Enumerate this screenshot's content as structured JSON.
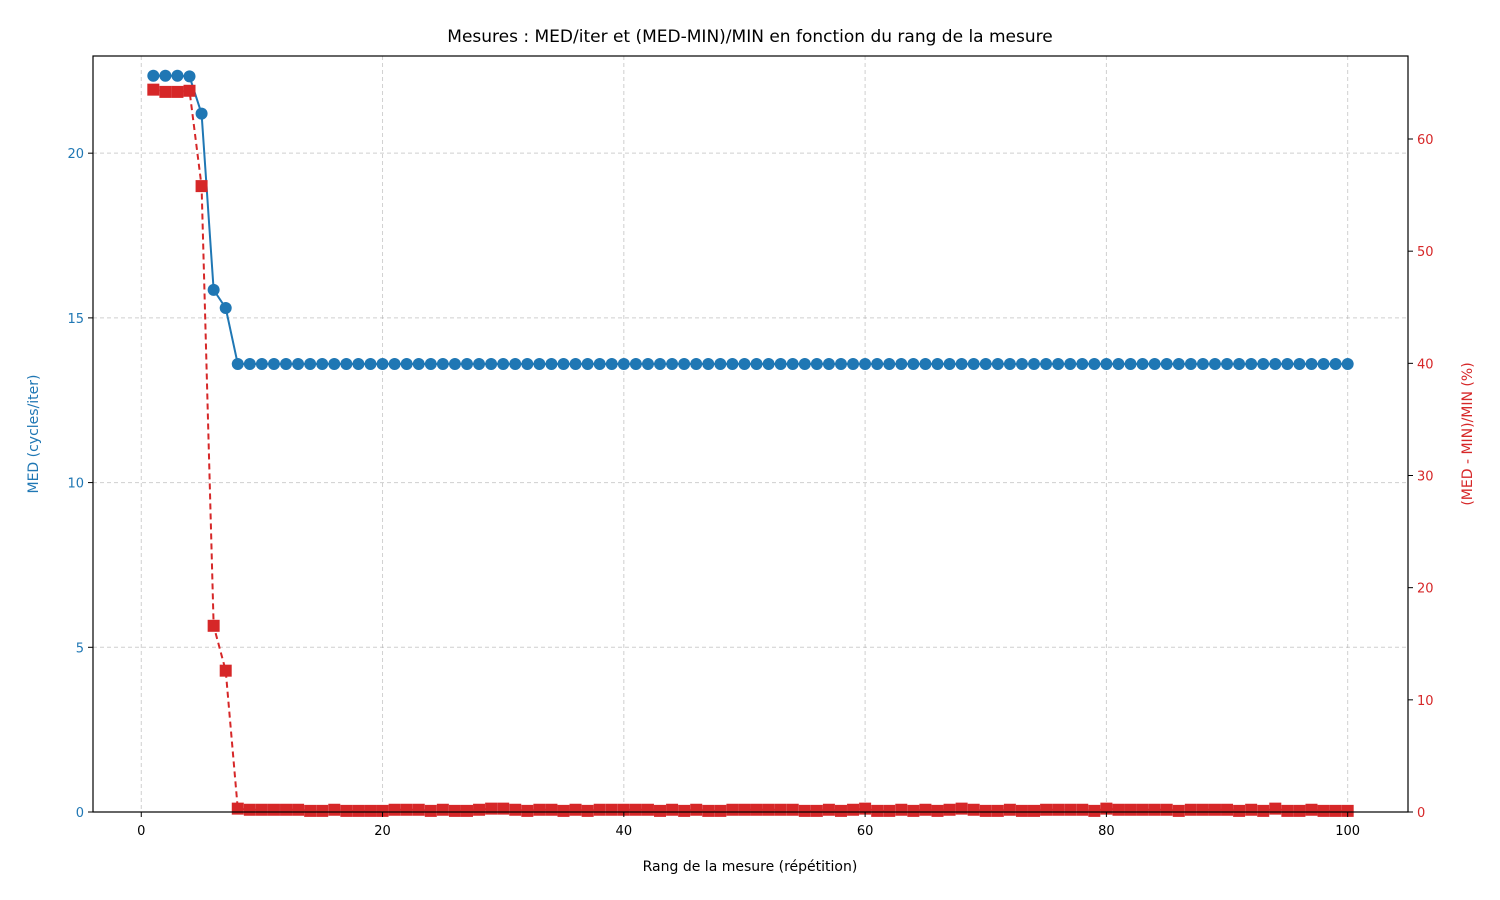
{
  "chart_data": {
    "type": "line",
    "title": "Mesures : MED/iter et (MED-MIN)/MIN en fonction du rang de la mesure",
    "xlabel": "Rang de la mesure (répétition)",
    "ylabel_left": "MED (cycles/iter)",
    "ylabel_right": "(MED - MIN)/MIN (%)",
    "xlim": [
      -4,
      105
    ],
    "ylim_left": [
      0,
      22.95
    ],
    "ylim_right": [
      0,
      67.4
    ],
    "x_ticks": [
      0,
      20,
      40,
      60,
      80,
      100
    ],
    "y_left_ticks": [
      0,
      5,
      10,
      15,
      20
    ],
    "y_right_ticks": [
      0,
      10,
      20,
      30,
      40,
      50,
      60
    ],
    "grid": true,
    "colors": {
      "left": "#1f77b4",
      "right": "#d62728"
    },
    "series": [
      {
        "axis": "left",
        "style": "solid-circle",
        "values": [
          22.35,
          22.35,
          22.35,
          22.33,
          21.2,
          15.85,
          15.3,
          13.6,
          13.6,
          13.6,
          13.6,
          13.6,
          13.6,
          13.6,
          13.6,
          13.6,
          13.6,
          13.6,
          13.6,
          13.6,
          13.6,
          13.6,
          13.6,
          13.6,
          13.6,
          13.6,
          13.6,
          13.6,
          13.6,
          13.6,
          13.6,
          13.6,
          13.6,
          13.6,
          13.6,
          13.6,
          13.6,
          13.6,
          13.6,
          13.6,
          13.6,
          13.6,
          13.6,
          13.6,
          13.6,
          13.6,
          13.6,
          13.6,
          13.6,
          13.6,
          13.6,
          13.6,
          13.6,
          13.6,
          13.6,
          13.6,
          13.6,
          13.6,
          13.6,
          13.6,
          13.6,
          13.6,
          13.6,
          13.6,
          13.6,
          13.6,
          13.6,
          13.6,
          13.6,
          13.6,
          13.6,
          13.6,
          13.6,
          13.6,
          13.6,
          13.6,
          13.6,
          13.6,
          13.6,
          13.6,
          13.6,
          13.6,
          13.6,
          13.6,
          13.6,
          13.6,
          13.6,
          13.6,
          13.6,
          13.6,
          13.6,
          13.6,
          13.6,
          13.6,
          13.6,
          13.6,
          13.6,
          13.6,
          13.6,
          13.6
        ]
      },
      {
        "axis": "right",
        "style": "dashed-square",
        "values": [
          64.4,
          64.2,
          64.2,
          64.3,
          55.8,
          16.6,
          12.6,
          0.3,
          0.2,
          0.2,
          0.2,
          0.2,
          0.2,
          0.1,
          0.1,
          0.2,
          0.1,
          0.1,
          0.1,
          0.1,
          0.2,
          0.2,
          0.2,
          0.1,
          0.2,
          0.1,
          0.1,
          0.2,
          0.3,
          0.3,
          0.2,
          0.1,
          0.2,
          0.2,
          0.1,
          0.2,
          0.1,
          0.2,
          0.2,
          0.2,
          0.2,
          0.2,
          0.1,
          0.2,
          0.1,
          0.2,
          0.1,
          0.1,
          0.2,
          0.2,
          0.2,
          0.2,
          0.2,
          0.2,
          0.1,
          0.1,
          0.2,
          0.1,
          0.2,
          0.3,
          0.1,
          0.1,
          0.2,
          0.1,
          0.2,
          0.1,
          0.2,
          0.3,
          0.2,
          0.1,
          0.1,
          0.2,
          0.1,
          0.1,
          0.2,
          0.2,
          0.2,
          0.2,
          0.1,
          0.3,
          0.2,
          0.2,
          0.2,
          0.2,
          0.2,
          0.1,
          0.2,
          0.2,
          0.2,
          0.2,
          0.1,
          0.2,
          0.1,
          0.3,
          0.1,
          0.1,
          0.2,
          0.1,
          0.1,
          0.1
        ]
      }
    ]
  }
}
